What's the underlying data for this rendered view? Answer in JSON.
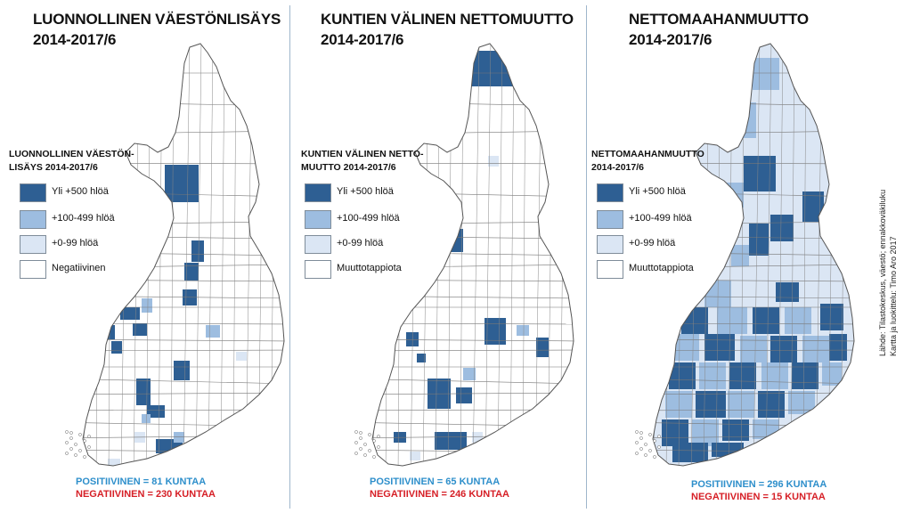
{
  "colors": {
    "dark": "#2e5f93",
    "medium": "#9dbde0",
    "light": "#dbe6f4",
    "none": "#ffffff",
    "border": "#555555",
    "positive_text": "#2e8fcb",
    "negative_text": "#d61f26"
  },
  "panels": [
    {
      "title": "LUONNOLLINEN VÄESTÖNLISÄYS\n2014-2017/6",
      "legend_title": "LUONNOLLINEN VÄESTÖN-\nLISÄYS  2014-2017/6",
      "legend": [
        "Yli +500 hlöä",
        "+100-499 hlöä",
        "+0-99 hlöä",
        "Negatiivinen"
      ],
      "positive": "POSITIIVINEN = 81 KUNTAA",
      "negative": "NEGATIIVINEN = 230 KUNTAA"
    },
    {
      "title": "KUNTIEN VÄLINEN NETTOMUUTTO\n2014-2017/6",
      "legend_title": "KUNTIEN VÄLINEN NETTO-\nMUUTTO  2014-2017/6",
      "legend": [
        "Yli +500 hlöä",
        "+100-499 hlöä",
        "+0-99 hlöä",
        "Muuttotappiota"
      ],
      "positive": "POSITIIVINEN = 65 KUNTAA",
      "negative": "NEGATIIVINEN = 246 KUNTAA"
    },
    {
      "title": "NETTOMAAHANMUUTTO\n2014-2017/6",
      "legend_title": "NETTOMAAHANMUUTTO\n2014-2017/6",
      "legend": [
        "Yli +500 hlöä",
        "+100-499 hlöä",
        "+0-99 hlöä",
        "Muuttotappiota"
      ],
      "positive": "POSITIIVINEN = 296 KUNTAA",
      "negative": "NEGATIIVINEN = 15 KUNTAA"
    }
  ],
  "source": "Lähde: Tilastokeskus, väestö; ennakkoväkiluku\nKartta ja luokittelu: Timo Aro 2017"
}
